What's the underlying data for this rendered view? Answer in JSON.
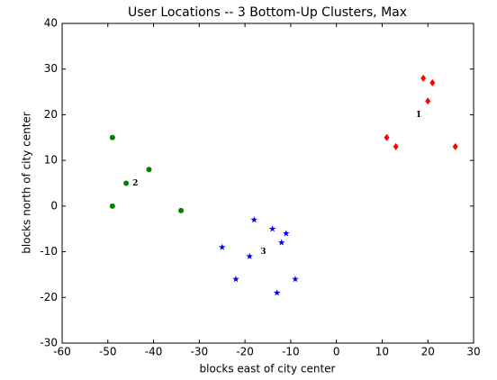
{
  "chart_data": {
    "type": "scatter",
    "title": "User Locations -- 3 Bottom-Up Clusters, Max",
    "xlabel": "blocks east of city center",
    "ylabel": "blocks north of city center",
    "xlim": [
      -60,
      30
    ],
    "ylim": [
      -30,
      40
    ],
    "xticks": [
      -60,
      -50,
      -40,
      -30,
      -20,
      -10,
      0,
      10,
      20,
      30
    ],
    "yticks": [
      -30,
      -20,
      -10,
      0,
      10,
      20,
      30,
      40
    ],
    "grid": false,
    "series": [
      {
        "color": "#ff0000",
        "marker": "diamond",
        "x": [
          19,
          21,
          20,
          11,
          13,
          26
        ],
        "values": [
          28,
          27,
          23,
          15,
          13,
          13
        ]
      },
      {
        "color": "#007f00",
        "marker": "circle",
        "x": [
          -49,
          -41,
          -46,
          -49,
          -34
        ],
        "values": [
          15,
          8,
          5,
          0,
          -1
        ]
      },
      {
        "color": "#0000ff",
        "marker": "star",
        "x": [
          -18,
          -14,
          -11,
          -25,
          -12,
          -19,
          -22,
          -9,
          -13
        ],
        "values": [
          -3,
          -5,
          -6,
          -9,
          -8,
          -11,
          -16,
          -16,
          -19
        ]
      }
    ],
    "annotations": [
      {
        "text": "1",
        "x": 18,
        "y": 20
      },
      {
        "text": "2",
        "x": -44,
        "y": 5
      },
      {
        "text": "3",
        "x": -16,
        "y": -10
      }
    ]
  }
}
